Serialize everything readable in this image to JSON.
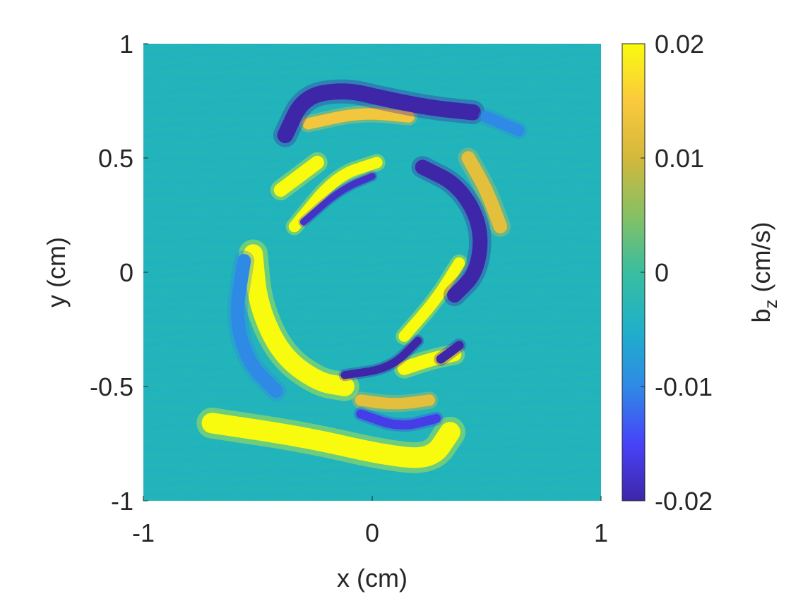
{
  "chart_data": {
    "type": "heatmap",
    "title": "",
    "xlabel": "x (cm)",
    "ylabel": "y (cm)",
    "xlim": [
      -1,
      1
    ],
    "ylim": [
      -1,
      1
    ],
    "x_ticks": [
      -1,
      0,
      1
    ],
    "x_tick_labels": [
      "-1",
      "0",
      "1"
    ],
    "y_ticks": [
      -1,
      -0.5,
      0,
      0.5,
      1
    ],
    "y_tick_labels": [
      "-1",
      "-0.5",
      "0",
      "0.5",
      "1"
    ],
    "grid": false,
    "colormap": "parula",
    "colormap_stops": [
      "#3e26a8",
      "#4743f8",
      "#2f8ae6",
      "#1fb0c9",
      "#39be9f",
      "#86c063",
      "#d3b83c",
      "#fac93d",
      "#f9fb0e"
    ],
    "colorbar": {
      "label_main": "b",
      "label_sub": "z",
      "label_unit": " (cm/s)",
      "clim": [
        -0.02,
        0.02
      ],
      "ticks": [
        -0.02,
        -0.01,
        0,
        0.01,
        0.02
      ],
      "tick_labels": [
        "-0.02",
        "-0.01",
        "0",
        "0.01",
        "0.02"
      ]
    },
    "features": [
      {
        "value": 0.02,
        "path": [
          [
            -0.52,
            0.08
          ],
          [
            -0.5,
            -0.14
          ],
          [
            -0.4,
            -0.36
          ],
          [
            -0.24,
            -0.48
          ],
          [
            -0.12,
            -0.5
          ]
        ],
        "width": 0.085
      },
      {
        "value": 0.02,
        "path": [
          [
            -0.34,
            0.2
          ],
          [
            -0.16,
            0.42
          ],
          [
            0.02,
            0.48
          ]
        ],
        "width": 0.05
      },
      {
        "value": 0.02,
        "path": [
          [
            -0.4,
            0.36
          ],
          [
            -0.32,
            0.42
          ],
          [
            -0.24,
            0.48
          ]
        ],
        "width": 0.06
      },
      {
        "value": 0.02,
        "path": [
          [
            -0.7,
            -0.66
          ],
          [
            -0.3,
            -0.72
          ],
          [
            0.05,
            -0.8
          ],
          [
            0.26,
            -0.82
          ],
          [
            0.34,
            -0.7
          ]
        ],
        "width": 0.09
      },
      {
        "value": 0.02,
        "path": [
          [
            0.14,
            -0.28
          ],
          [
            0.28,
            -0.12
          ],
          [
            0.38,
            0.04
          ]
        ],
        "width": 0.05
      },
      {
        "value": 0.02,
        "path": [
          [
            0.14,
            -0.42
          ],
          [
            0.26,
            -0.38
          ],
          [
            0.36,
            -0.36
          ]
        ],
        "width": 0.06
      },
      {
        "value": 0.014,
        "path": [
          [
            -0.28,
            0.65
          ],
          [
            -0.05,
            0.7
          ],
          [
            0.16,
            0.68
          ]
        ],
        "width": 0.05
      },
      {
        "value": 0.012,
        "path": [
          [
            0.42,
            0.5
          ],
          [
            0.5,
            0.36
          ],
          [
            0.56,
            0.2
          ]
        ],
        "width": 0.06
      },
      {
        "value": 0.012,
        "path": [
          [
            -0.05,
            -0.56
          ],
          [
            0.1,
            -0.58
          ],
          [
            0.25,
            -0.56
          ]
        ],
        "width": 0.05
      },
      {
        "value": -0.02,
        "path": [
          [
            -0.38,
            0.6
          ],
          [
            -0.3,
            0.77
          ],
          [
            -0.12,
            0.8
          ],
          [
            0.05,
            0.76
          ],
          [
            0.25,
            0.72
          ],
          [
            0.44,
            0.7
          ]
        ],
        "width": 0.07
      },
      {
        "value": -0.02,
        "path": [
          [
            0.22,
            0.46
          ],
          [
            0.38,
            0.38
          ],
          [
            0.48,
            0.2
          ],
          [
            0.46,
            0.0
          ],
          [
            0.36,
            -0.1
          ]
        ],
        "width": 0.065
      },
      {
        "value": -0.02,
        "path": [
          [
            -0.12,
            -0.45
          ],
          [
            0.08,
            -0.42
          ],
          [
            0.2,
            -0.3
          ]
        ],
        "width": 0.035
      },
      {
        "value": -0.02,
        "path": [
          [
            0.3,
            -0.38
          ],
          [
            0.38,
            -0.32
          ]
        ],
        "width": 0.04
      },
      {
        "value": -0.018,
        "path": [
          [
            -0.3,
            0.22
          ],
          [
            -0.14,
            0.36
          ],
          [
            0.0,
            0.42
          ]
        ],
        "width": 0.03
      },
      {
        "value": -0.016,
        "path": [
          [
            -0.05,
            -0.62
          ],
          [
            0.12,
            -0.68
          ],
          [
            0.28,
            -0.64
          ]
        ],
        "width": 0.04
      },
      {
        "value": -0.01,
        "path": [
          [
            -0.56,
            0.05
          ],
          [
            -0.6,
            -0.2
          ],
          [
            -0.54,
            -0.4
          ],
          [
            -0.42,
            -0.52
          ]
        ],
        "width": 0.06
      },
      {
        "value": -0.01,
        "path": [
          [
            0.5,
            0.68
          ],
          [
            0.64,
            0.62
          ]
        ],
        "width": 0.05
      }
    ]
  }
}
